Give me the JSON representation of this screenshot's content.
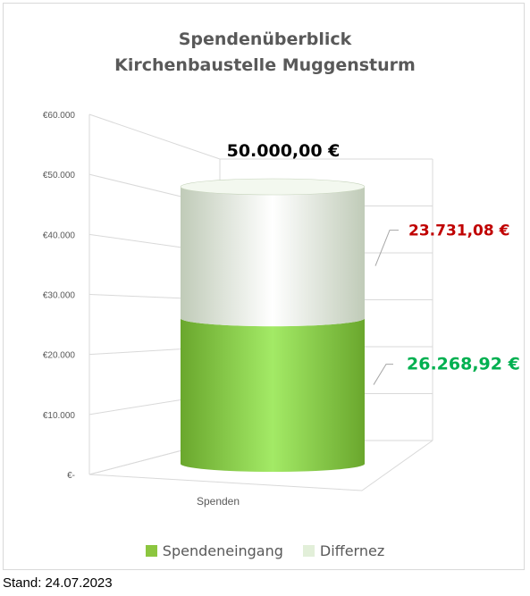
{
  "chart_data": {
    "type": "bar",
    "title": "Spendenüberblick",
    "subtitle": "Kirchenbaustelle Muggensturm",
    "categories": [
      "Spenden"
    ],
    "series": [
      {
        "name": "Spendeneingang",
        "values": [
          26268.92
        ],
        "color": "#8cc63f"
      },
      {
        "name": "Differnez",
        "values": [
          23731.08
        ],
        "color": "#e2efd9"
      }
    ],
    "stacked": true,
    "ylim": [
      0,
      60000
    ],
    "y_ticks": [
      0,
      10000,
      20000,
      30000,
      40000,
      50000,
      60000
    ],
    "y_tick_labels": [
      "€-",
      "€10.000",
      "€20.000",
      "€30.000",
      "€40.000",
      "€50.000",
      "€60.000"
    ],
    "data_labels": {
      "total": "50.000,00 €",
      "difference": "23.731,08 €",
      "received": "26.268,92 €"
    },
    "label_colors": {
      "total": "#000000",
      "difference": "#c00000",
      "received": "#00b050"
    },
    "legend_position": "bottom",
    "grid": true,
    "style": "3d-cylinder"
  },
  "footer": {
    "text": "Stand: 24.07.2023"
  }
}
